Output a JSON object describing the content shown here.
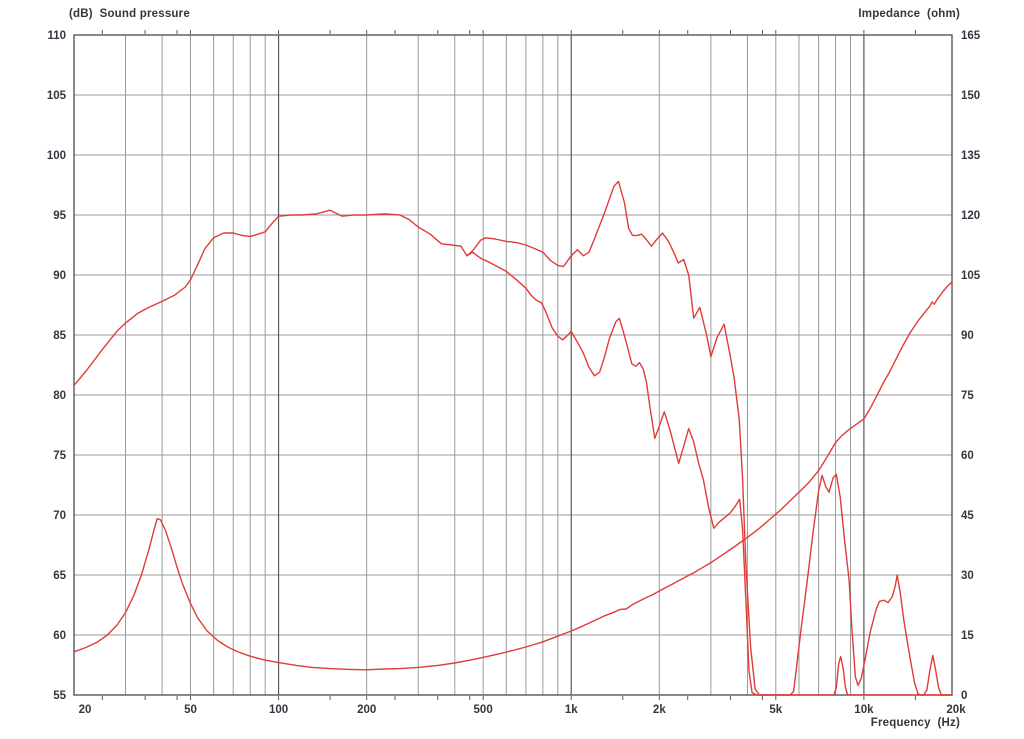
{
  "chart_data": {
    "type": "line",
    "titles": {
      "left": "(dB)  Sound pressure",
      "right": "Impedance  (ohm)",
      "x": "Frequency  (Hz)"
    },
    "x_axis": {
      "scale": "log",
      "min": 20,
      "max": 20000,
      "major_ticks": [
        {
          "value": 20,
          "label": "20"
        },
        {
          "value": 50,
          "label": "50"
        },
        {
          "value": 100,
          "label": "100"
        },
        {
          "value": 200,
          "label": "200"
        },
        {
          "value": 500,
          "label": "500"
        },
        {
          "value": 1000,
          "label": "1k"
        },
        {
          "value": 2000,
          "label": "2k"
        },
        {
          "value": 5000,
          "label": "5k"
        },
        {
          "value": 10000,
          "label": "10k"
        },
        {
          "value": 20000,
          "label": "20k"
        }
      ],
      "gridlines": [
        30,
        40,
        50,
        60,
        70,
        80,
        90,
        100,
        200,
        300,
        400,
        500,
        600,
        700,
        800,
        900,
        1000,
        2000,
        3000,
        4000,
        5000,
        6000,
        7000,
        8000,
        9000,
        10000
      ],
      "decade_gridlines": [
        100,
        1000,
        10000
      ],
      "minor_ticks": [
        25,
        35,
        45,
        150,
        250,
        350,
        450,
        1500,
        2500,
        3500,
        4500,
        15000
      ]
    },
    "y_left_axis": {
      "min": 55,
      "max": 110,
      "step": 5,
      "labels": [
        "55",
        "60",
        "65",
        "70",
        "75",
        "80",
        "85",
        "90",
        "95",
        "100",
        "105",
        "110"
      ]
    },
    "y_right_axis": {
      "min": 0,
      "max": 165,
      "step": 15,
      "labels": [
        "0",
        "15",
        "30",
        "45",
        "60",
        "75",
        "90",
        "105",
        "120",
        "135",
        "150",
        "165"
      ]
    },
    "colors": {
      "curve": "#e03c38",
      "grid": "#9a9a9a",
      "grid_decade": "#5a5a5a",
      "border": "#4a4a4a",
      "text": "#35353f",
      "background": "#ffffff"
    },
    "series": [
      {
        "id": "spl_upper",
        "name": "sound-pressure-upper-curve",
        "axis": "left",
        "unit": "dB",
        "points": [
          [
            20,
            80.8
          ],
          [
            22,
            82.0
          ],
          [
            25,
            83.8
          ],
          [
            28,
            85.3
          ],
          [
            30,
            86.0
          ],
          [
            33,
            86.8
          ],
          [
            36,
            87.3
          ],
          [
            40,
            87.8
          ],
          [
            44,
            88.3
          ],
          [
            48,
            89.0
          ],
          [
            50,
            89.6
          ],
          [
            53,
            90.9
          ],
          [
            56,
            92.2
          ],
          [
            60,
            93.1
          ],
          [
            65,
            93.5
          ],
          [
            70,
            93.5
          ],
          [
            75,
            93.3
          ],
          [
            80,
            93.2
          ],
          [
            85,
            93.4
          ],
          [
            90,
            93.6
          ],
          [
            95,
            94.3
          ],
          [
            100,
            94.9
          ],
          [
            110,
            95.0
          ],
          [
            120,
            95.0
          ],
          [
            135,
            95.1
          ],
          [
            150,
            95.4
          ],
          [
            165,
            94.9
          ],
          [
            180,
            95.0
          ],
          [
            200,
            95.0
          ],
          [
            230,
            95.1
          ],
          [
            260,
            95.0
          ],
          [
            280,
            94.6
          ],
          [
            300,
            94.0
          ],
          [
            330,
            93.4
          ],
          [
            360,
            92.6
          ],
          [
            390,
            92.5
          ],
          [
            420,
            92.4
          ],
          [
            440,
            91.6
          ],
          [
            460,
            92.0
          ],
          [
            490,
            92.9
          ],
          [
            510,
            93.1
          ],
          [
            550,
            93.0
          ],
          [
            600,
            92.8
          ],
          [
            650,
            92.7
          ],
          [
            700,
            92.5
          ],
          [
            750,
            92.2
          ],
          [
            800,
            91.9
          ],
          [
            850,
            91.2
          ],
          [
            900,
            90.8
          ],
          [
            940,
            90.7
          ],
          [
            1000,
            91.6
          ],
          [
            1050,
            92.1
          ],
          [
            1100,
            91.6
          ],
          [
            1150,
            91.9
          ],
          [
            1200,
            93.0
          ],
          [
            1300,
            95.2
          ],
          [
            1400,
            97.4
          ],
          [
            1450,
            97.8
          ],
          [
            1520,
            96.0
          ],
          [
            1570,
            93.9
          ],
          [
            1620,
            93.3
          ],
          [
            1680,
            93.3
          ],
          [
            1740,
            93.4
          ],
          [
            1800,
            93.0
          ],
          [
            1880,
            92.4
          ],
          [
            1950,
            92.9
          ],
          [
            2050,
            93.5
          ],
          [
            2150,
            92.8
          ],
          [
            2250,
            91.8
          ],
          [
            2320,
            91.0
          ],
          [
            2420,
            91.3
          ],
          [
            2520,
            90.0
          ],
          [
            2620,
            86.4
          ],
          [
            2750,
            87.3
          ],
          [
            2900,
            85.0
          ],
          [
            3000,
            83.2
          ],
          [
            3150,
            84.8
          ],
          [
            3330,
            85.9
          ],
          [
            3480,
            83.5
          ],
          [
            3600,
            81.5
          ],
          [
            3750,
            78.0
          ],
          [
            3850,
            73.0
          ],
          [
            3950,
            66.0
          ],
          [
            4100,
            59.0
          ],
          [
            4250,
            55.5
          ],
          [
            4400,
            55.0
          ],
          [
            5600,
            55.0
          ],
          [
            5750,
            55.3
          ],
          [
            5900,
            57.5
          ],
          [
            6100,
            60.5
          ],
          [
            6400,
            64.5
          ],
          [
            6700,
            68.5
          ],
          [
            7000,
            72.0
          ],
          [
            7200,
            73.3
          ],
          [
            7400,
            72.4
          ],
          [
            7600,
            71.9
          ],
          [
            7850,
            73.1
          ],
          [
            8050,
            73.4
          ],
          [
            8300,
            71.5
          ],
          [
            8600,
            67.8
          ],
          [
            8900,
            64.6
          ],
          [
            9100,
            60.5
          ],
          [
            9350,
            56.5
          ],
          [
            9550,
            55.8
          ],
          [
            9800,
            56.4
          ],
          [
            10100,
            58.0
          ],
          [
            10500,
            60.2
          ],
          [
            11000,
            62.1
          ],
          [
            11300,
            62.8
          ],
          [
            11700,
            62.9
          ],
          [
            12100,
            62.7
          ],
          [
            12500,
            63.2
          ],
          [
            12800,
            64.1
          ],
          [
            13000,
            65.0
          ],
          [
            13300,
            63.6
          ],
          [
            13700,
            61.2
          ],
          [
            14100,
            59.3
          ],
          [
            14500,
            57.6
          ],
          [
            14900,
            56.0
          ],
          [
            15300,
            55.1
          ],
          [
            15700,
            55.0
          ],
          [
            20000,
            55.0
          ]
        ]
      },
      {
        "id": "spl_lower",
        "name": "sound-pressure-lower-curve",
        "axis": "left",
        "unit": "dB",
        "points": [
          [
            440,
            91.6
          ],
          [
            460,
            91.9
          ],
          [
            490,
            91.4
          ],
          [
            520,
            91.1
          ],
          [
            560,
            90.7
          ],
          [
            600,
            90.3
          ],
          [
            650,
            89.6
          ],
          [
            700,
            88.9
          ],
          [
            730,
            88.3
          ],
          [
            760,
            87.9
          ],
          [
            790,
            87.7
          ],
          [
            820,
            86.9
          ],
          [
            860,
            85.6
          ],
          [
            900,
            84.9
          ],
          [
            935,
            84.6
          ],
          [
            965,
            84.9
          ],
          [
            1000,
            85.3
          ],
          [
            1050,
            84.4
          ],
          [
            1100,
            83.5
          ],
          [
            1150,
            82.3
          ],
          [
            1200,
            81.6
          ],
          [
            1250,
            81.9
          ],
          [
            1300,
            83.2
          ],
          [
            1350,
            84.7
          ],
          [
            1420,
            86.1
          ],
          [
            1460,
            86.4
          ],
          [
            1510,
            85.2
          ],
          [
            1560,
            83.9
          ],
          [
            1610,
            82.6
          ],
          [
            1660,
            82.4
          ],
          [
            1710,
            82.7
          ],
          [
            1760,
            82.2
          ],
          [
            1810,
            81.0
          ],
          [
            1860,
            78.9
          ],
          [
            1930,
            76.4
          ],
          [
            2000,
            77.4
          ],
          [
            2080,
            78.6
          ],
          [
            2180,
            77.0
          ],
          [
            2330,
            74.3
          ],
          [
            2420,
            75.7
          ],
          [
            2520,
            77.2
          ],
          [
            2620,
            76.1
          ],
          [
            2720,
            74.4
          ],
          [
            2830,
            72.9
          ],
          [
            2950,
            70.6
          ],
          [
            3070,
            68.9
          ],
          [
            3200,
            69.4
          ],
          [
            3350,
            69.8
          ],
          [
            3500,
            70.2
          ],
          [
            3650,
            70.8
          ],
          [
            3760,
            71.3
          ],
          [
            3850,
            68.8
          ],
          [
            3950,
            63.0
          ],
          [
            4050,
            57.0
          ],
          [
            4150,
            55.2
          ],
          [
            4300,
            55.0
          ],
          [
            7900,
            55.0
          ],
          [
            8050,
            55.6
          ],
          [
            8200,
            57.6
          ],
          [
            8330,
            58.2
          ],
          [
            8500,
            57.2
          ],
          [
            8650,
            55.6
          ],
          [
            8800,
            55.0
          ],
          [
            16000,
            55.0
          ],
          [
            16400,
            55.4
          ],
          [
            16800,
            57.0
          ],
          [
            17200,
            58.3
          ],
          [
            17600,
            57.0
          ],
          [
            18000,
            55.6
          ],
          [
            18400,
            55.0
          ],
          [
            20000,
            55.0
          ]
        ]
      },
      {
        "id": "impedance",
        "name": "impedance-curve",
        "axis": "right",
        "unit": "ohm",
        "points": [
          [
            20,
            10.8
          ],
          [
            22,
            11.9
          ],
          [
            24,
            13.2
          ],
          [
            26,
            15.0
          ],
          [
            28,
            17.4
          ],
          [
            30,
            20.6
          ],
          [
            32,
            24.8
          ],
          [
            34,
            30.0
          ],
          [
            36,
            36.2
          ],
          [
            37.5,
            41.2
          ],
          [
            38.5,
            44.1
          ],
          [
            39.5,
            43.8
          ],
          [
            41,
            41.3
          ],
          [
            43,
            36.8
          ],
          [
            45,
            31.9
          ],
          [
            47,
            27.7
          ],
          [
            50,
            22.9
          ],
          [
            53,
            19.2
          ],
          [
            57,
            16.0
          ],
          [
            62,
            13.6
          ],
          [
            67,
            12.0
          ],
          [
            72,
            10.9
          ],
          [
            80,
            9.7
          ],
          [
            90,
            8.7
          ],
          [
            100,
            8.1
          ],
          [
            115,
            7.4
          ],
          [
            130,
            6.9
          ],
          [
            150,
            6.6
          ],
          [
            175,
            6.4
          ],
          [
            200,
            6.3
          ],
          [
            230,
            6.5
          ],
          [
            260,
            6.6
          ],
          [
            300,
            6.9
          ],
          [
            350,
            7.4
          ],
          [
            400,
            8.0
          ],
          [
            450,
            8.7
          ],
          [
            500,
            9.4
          ],
          [
            560,
            10.2
          ],
          [
            630,
            11.1
          ],
          [
            700,
            12.0
          ],
          [
            800,
            13.3
          ],
          [
            900,
            14.7
          ],
          [
            1000,
            16.0
          ],
          [
            1100,
            17.3
          ],
          [
            1200,
            18.6
          ],
          [
            1300,
            19.8
          ],
          [
            1400,
            20.7
          ],
          [
            1470,
            21.4
          ],
          [
            1540,
            21.5
          ],
          [
            1620,
            22.6
          ],
          [
            1700,
            23.4
          ],
          [
            1800,
            24.3
          ],
          [
            1900,
            25.1
          ],
          [
            2000,
            26.0
          ],
          [
            2200,
            27.6
          ],
          [
            2400,
            29.1
          ],
          [
            2600,
            30.4
          ],
          [
            2800,
            31.8
          ],
          [
            3000,
            33.1
          ],
          [
            3300,
            35.1
          ],
          [
            3600,
            37.0
          ],
          [
            4000,
            39.4
          ],
          [
            4400,
            41.7
          ],
          [
            4800,
            44.1
          ],
          [
            5200,
            46.3
          ],
          [
            5600,
            48.6
          ],
          [
            6000,
            50.7
          ],
          [
            6500,
            53.2
          ],
          [
            7000,
            56.1
          ],
          [
            7500,
            59.6
          ],
          [
            8000,
            63.1
          ],
          [
            8400,
            64.8
          ],
          [
            8800,
            66.1
          ],
          [
            9300,
            67.4
          ],
          [
            10000,
            69.0
          ],
          [
            10500,
            71.6
          ],
          [
            11000,
            74.4
          ],
          [
            11600,
            77.8
          ],
          [
            12200,
            80.6
          ],
          [
            12900,
            84.1
          ],
          [
            13600,
            87.4
          ],
          [
            14400,
            90.6
          ],
          [
            15200,
            93.2
          ],
          [
            16000,
            95.3
          ],
          [
            16800,
            97.2
          ],
          [
            17100,
            98.3
          ],
          [
            17400,
            97.7
          ],
          [
            17800,
            98.9
          ],
          [
            18500,
            100.6
          ],
          [
            19200,
            102.0
          ],
          [
            20000,
            103.3
          ]
        ]
      }
    ]
  }
}
